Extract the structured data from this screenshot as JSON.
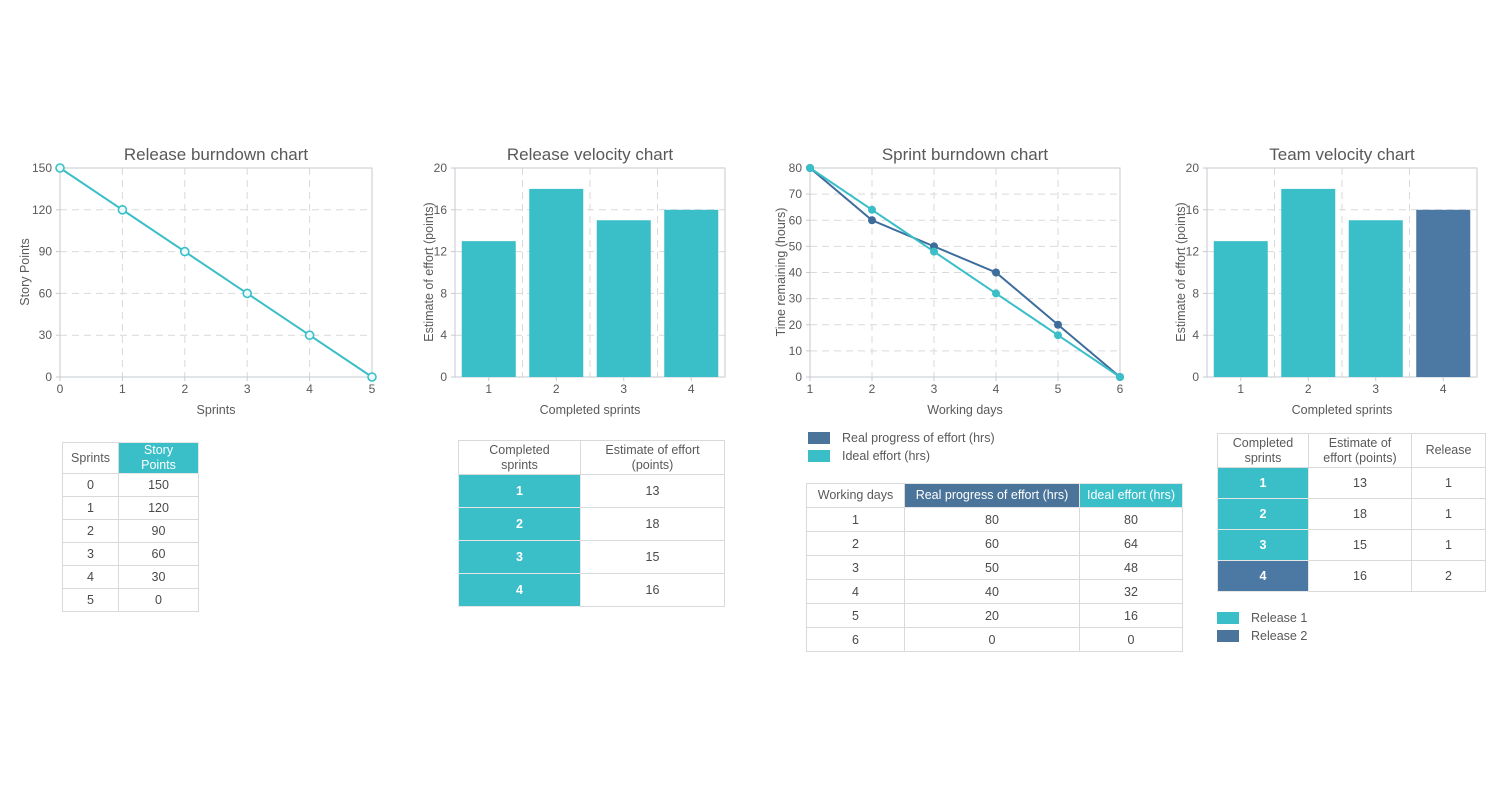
{
  "colors": {
    "teal": "#3abec8",
    "blue": "#4a7499",
    "bar_blue": "#4b79a3",
    "line_blue": "#3e6d9c",
    "text": "#595959",
    "grid": "#d9d9d9",
    "axis": "#c6cbd0"
  },
  "chart_data": [
    {
      "type": "line",
      "title": "Release burndown chart",
      "xlabel": "Sprints",
      "ylabel": "Story Points",
      "x": [
        0,
        1,
        2,
        3,
        4,
        5
      ],
      "series": [
        {
          "name": "Story Points",
          "values": [
            150,
            120,
            90,
            60,
            30,
            0
          ],
          "color": "teal",
          "marker": "open-circle"
        }
      ],
      "xlim": [
        0,
        5
      ],
      "ylim": [
        0,
        150
      ],
      "xticks": [
        0,
        1,
        2,
        3,
        4,
        5
      ],
      "yticks": [
        0,
        30,
        60,
        90,
        120,
        150
      ],
      "grid": "dashed",
      "legend_position": "none"
    },
    {
      "type": "bar",
      "title": "Release velocity chart",
      "xlabel": "Completed sprints",
      "ylabel": "Estimate of effort (points)",
      "categories": [
        "1",
        "2",
        "3",
        "4"
      ],
      "values": [
        13,
        18,
        15,
        16
      ],
      "bar_colors": [
        "teal",
        "teal",
        "teal",
        "teal"
      ],
      "ylim": [
        0,
        20
      ],
      "yticks": [
        0,
        4,
        8,
        12,
        16,
        20
      ],
      "grid": "dashed",
      "legend_position": "none"
    },
    {
      "type": "line",
      "title": "Sprint burndown chart",
      "xlabel": "Working days",
      "ylabel": "Time remaining (hours)",
      "x": [
        1,
        2,
        3,
        4,
        5,
        6
      ],
      "series": [
        {
          "name": "Real progress of effort (hrs)",
          "values": [
            80,
            60,
            50,
            40,
            20,
            0
          ],
          "color": "line_blue",
          "marker": "dot"
        },
        {
          "name": "Ideal effort (hrs)",
          "values": [
            80,
            64,
            48,
            32,
            16,
            0
          ],
          "color": "teal",
          "marker": "dot"
        }
      ],
      "xlim": [
        1,
        6
      ],
      "ylim": [
        0,
        80
      ],
      "xticks": [
        1,
        2,
        3,
        4,
        5,
        6
      ],
      "yticks": [
        0,
        10,
        20,
        30,
        40,
        50,
        60,
        70,
        80
      ],
      "grid": "dashed",
      "legend_position": "below"
    },
    {
      "type": "bar",
      "title": "Team velocity chart",
      "xlabel": "Completed sprints",
      "ylabel": "Estimate of effort (points)",
      "categories": [
        "1",
        "2",
        "3",
        "4"
      ],
      "values": [
        13,
        18,
        15,
        16
      ],
      "bar_colors": [
        "teal",
        "teal",
        "teal",
        "bar_blue"
      ],
      "ylim": [
        0,
        20
      ],
      "yticks": [
        0,
        4,
        8,
        12,
        16,
        20
      ],
      "grid": "dashed",
      "legend_position": "below-table"
    }
  ],
  "tables": [
    {
      "columns": [
        {
          "label": "Sprints",
          "style": "plain"
        },
        {
          "label": "Story Points",
          "style": "teal"
        }
      ],
      "rows": [
        [
          "0",
          "150"
        ],
        [
          "1",
          "120"
        ],
        [
          "2",
          "90"
        ],
        [
          "3",
          "60"
        ],
        [
          "4",
          "30"
        ],
        [
          "5",
          "0"
        ]
      ]
    },
    {
      "columns": [
        {
          "label": "Completed\nsprints",
          "style": "plain"
        },
        {
          "label": "Estimate of effort\n(points)",
          "style": "plain"
        }
      ],
      "rows": [
        [
          "1",
          "13"
        ],
        [
          "2",
          "18"
        ],
        [
          "3",
          "15"
        ],
        [
          "4",
          "16"
        ]
      ],
      "key_col_styles": [
        "teal",
        "teal",
        "teal",
        "teal"
      ]
    },
    {
      "columns": [
        {
          "label": "Working days",
          "style": "plain"
        },
        {
          "label": "Real progress of effort (hrs)",
          "style": "blue"
        },
        {
          "label": "Ideal effort (hrs)",
          "style": "teal"
        }
      ],
      "rows": [
        [
          "1",
          "80",
          "80"
        ],
        [
          "2",
          "60",
          "64"
        ],
        [
          "3",
          "50",
          "48"
        ],
        [
          "4",
          "40",
          "32"
        ],
        [
          "5",
          "20",
          "16"
        ],
        [
          "6",
          "0",
          "0"
        ]
      ]
    },
    {
      "columns": [
        {
          "label": "Completed\nsprints",
          "style": "plain"
        },
        {
          "label": "Estimate of\neffort (points)",
          "style": "plain"
        },
        {
          "label": "Release",
          "style": "plain"
        }
      ],
      "rows": [
        [
          "1",
          "13",
          "1"
        ],
        [
          "2",
          "18",
          "1"
        ],
        [
          "3",
          "15",
          "1"
        ],
        [
          "4",
          "16",
          "2"
        ]
      ],
      "key_col_styles": [
        "teal",
        "teal",
        "teal",
        "bar_blue"
      ]
    }
  ],
  "legends": {
    "sprint_burndown": {
      "items": [
        {
          "label": "Real progress of effort (hrs)",
          "color": "blue"
        },
        {
          "label": "Ideal effort (hrs)",
          "color": "teal"
        }
      ]
    },
    "team_velocity": {
      "items": [
        {
          "label": "Release 1",
          "color": "teal"
        },
        {
          "label": "Release 2",
          "color": "blue"
        }
      ]
    }
  }
}
